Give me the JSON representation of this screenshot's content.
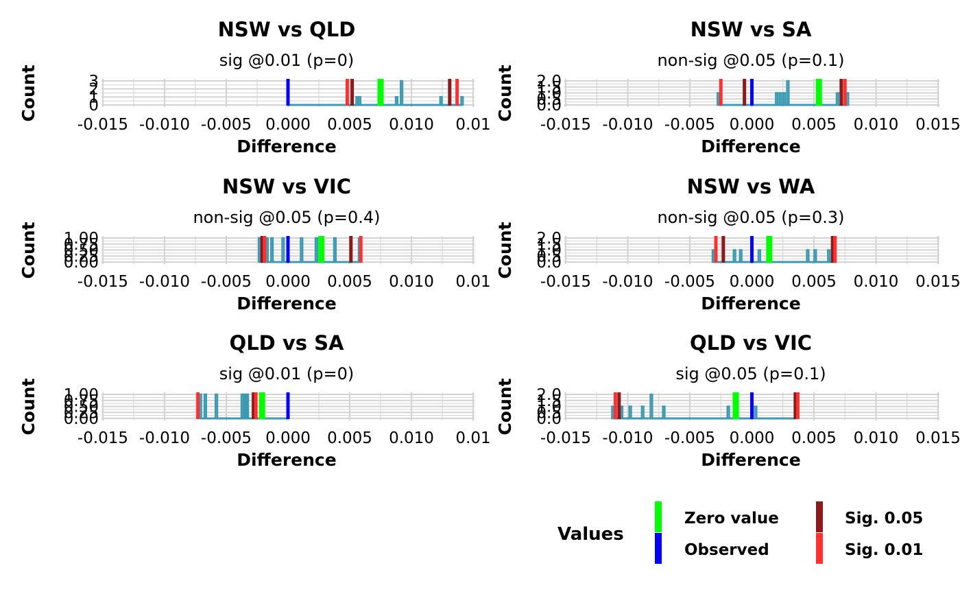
{
  "chart_data": [
    {
      "type": "histogram",
      "title": "NSW vs QLD",
      "subtitle": "sig @0.01 (p=0)",
      "xlabel": "Difference",
      "ylabel": "Count",
      "xlim": [
        -0.015,
        0.015
      ],
      "x_ticks": [
        "-0.015",
        "-0.010",
        "-0.005",
        "0.000",
        "0.005",
        "0.010",
        "0.01"
      ],
      "y_ticks": [
        "0",
        "1",
        "2",
        "3"
      ],
      "ylim": [
        0,
        3
      ],
      "histogram_bins": [
        {
          "x": 0.0056,
          "count": 1
        },
        {
          "x": 0.0058,
          "count": 1
        },
        {
          "x": 0.0088,
          "count": 1
        },
        {
          "x": 0.0092,
          "count": 3
        },
        {
          "x": 0.0124,
          "count": 1
        },
        {
          "x": 0.0141,
          "count": 1
        }
      ],
      "histogram_baseline": [
        0.0,
        0.0141
      ],
      "vlines": [
        {
          "kind": "observed",
          "x": 0.0
        },
        {
          "kind": "sig_01",
          "x": 0.0048
        },
        {
          "kind": "sig_05",
          "x": 0.0052
        },
        {
          "kind": "zero",
          "x": 0.0075
        },
        {
          "kind": "sig_05",
          "x": 0.0131
        },
        {
          "kind": "sig_01",
          "x": 0.0137
        }
      ]
    },
    {
      "type": "histogram",
      "title": "NSW vs SA",
      "subtitle": "non-sig @0.05 (p=0.1)",
      "xlabel": "Difference",
      "ylabel": "Count",
      "xlim": [
        -0.015,
        0.015
      ],
      "x_ticks": [
        "-0.015",
        "-0.010",
        "-0.005",
        "0.000",
        "0.005",
        "0.010",
        "0.015"
      ],
      "y_ticks": [
        "0.0",
        "0.5",
        "1.0",
        "1.5",
        "2.0"
      ],
      "ylim": [
        0,
        2
      ],
      "histogram_bins": [
        {
          "x": -0.0027,
          "count": 1
        },
        {
          "x": 0.002,
          "count": 1
        },
        {
          "x": 0.0023,
          "count": 1
        },
        {
          "x": 0.0026,
          "count": 1
        },
        {
          "x": 0.0029,
          "count": 2
        },
        {
          "x": 0.0069,
          "count": 1
        },
        {
          "x": 0.0077,
          "count": 1
        }
      ],
      "histogram_baseline": [
        -0.0027,
        0.0077
      ],
      "vlines": [
        {
          "kind": "sig_01",
          "x": -0.0025
        },
        {
          "kind": "sig_05",
          "x": -0.0006
        },
        {
          "kind": "observed",
          "x": 0.0
        },
        {
          "kind": "zero",
          "x": 0.0054
        },
        {
          "kind": "sig_05",
          "x": 0.0072
        },
        {
          "kind": "sig_01",
          "x": 0.0075
        }
      ]
    },
    {
      "type": "histogram",
      "title": "NSW vs VIC",
      "subtitle": "non-sig @0.05 (p=0.4)",
      "xlabel": "Difference",
      "ylabel": "Count",
      "xlim": [
        -0.015,
        0.015
      ],
      "x_ticks": [
        "-0.015",
        "-0.010",
        "-0.005",
        "0.000",
        "0.005",
        "0.010",
        "0.01"
      ],
      "y_ticks": [
        "0.00",
        "0.25",
        "0.50",
        "0.75",
        "1.00"
      ],
      "ylim": [
        0,
        1
      ],
      "histogram_bins": [
        {
          "x": -0.0023,
          "count": 1
        },
        {
          "x": -0.0017,
          "count": 1
        },
        {
          "x": -0.0013,
          "count": 1
        },
        {
          "x": -0.0004,
          "count": 1
        },
        {
          "x": 0.0011,
          "count": 1
        },
        {
          "x": 0.0023,
          "count": 1
        },
        {
          "x": 0.0038,
          "count": 1
        },
        {
          "x": 0.0058,
          "count": 1
        }
      ],
      "histogram_baseline": [
        -0.0023,
        0.0058
      ],
      "vlines": [
        {
          "kind": "sig_05",
          "x": -0.0021
        },
        {
          "kind": "sig_01",
          "x": -0.0019
        },
        {
          "kind": "observed",
          "x": 0.0
        },
        {
          "kind": "zero",
          "x": 0.0027
        },
        {
          "kind": "sig_05",
          "x": 0.0051
        },
        {
          "kind": "sig_01",
          "x": 0.0059
        }
      ]
    },
    {
      "type": "histogram",
      "title": "NSW vs WA",
      "subtitle": "non-sig @0.05 (p=0.3)",
      "xlabel": "Difference",
      "ylabel": "Count",
      "xlim": [
        -0.015,
        0.015
      ],
      "x_ticks": [
        "-0.015",
        "-0.010",
        "-0.005",
        "0.000",
        "0.005",
        "0.010",
        "0.015"
      ],
      "y_ticks": [
        "0.0",
        "0.5",
        "1.0",
        "1.5",
        "2.0"
      ],
      "ylim": [
        0,
        2
      ],
      "histogram_bins": [
        {
          "x": -0.0031,
          "count": 1
        },
        {
          "x": -0.0014,
          "count": 1
        },
        {
          "x": -0.0009,
          "count": 1
        },
        {
          "x": 0.0006,
          "count": 1
        },
        {
          "x": 0.0045,
          "count": 1
        },
        {
          "x": 0.0051,
          "count": 1
        },
        {
          "x": 0.0062,
          "count": 1
        }
      ],
      "histogram_baseline": [
        -0.0031,
        0.0068
      ],
      "vlines": [
        {
          "kind": "sig_01",
          "x": -0.0029
        },
        {
          "kind": "sig_05",
          "x": -0.0023
        },
        {
          "kind": "observed",
          "x": 0.0
        },
        {
          "kind": "zero",
          "x": 0.0014
        },
        {
          "kind": "sig_05",
          "x": 0.0065
        },
        {
          "kind": "sig_01",
          "x": 0.0067
        }
      ]
    },
    {
      "type": "histogram",
      "title": "QLD vs SA",
      "subtitle": "sig @0.01 (p=0)",
      "xlabel": "Difference",
      "ylabel": "Count",
      "xlim": [
        -0.015,
        0.015
      ],
      "x_ticks": [
        "-0.015",
        "-0.010",
        "-0.005",
        "0.000",
        "0.005",
        "0.010",
        "0.01"
      ],
      "y_ticks": [
        "0.00",
        "0.25",
        "0.50",
        "0.75",
        "1.00"
      ],
      "ylim": [
        0,
        1
      ],
      "histogram_bins": [
        {
          "x": -0.0071,
          "count": 1
        },
        {
          "x": -0.0067,
          "count": 1
        },
        {
          "x": -0.0058,
          "count": 1
        },
        {
          "x": -0.0037,
          "count": 1
        },
        {
          "x": -0.0035,
          "count": 1
        },
        {
          "x": -0.0034,
          "count": 1
        },
        {
          "x": -0.0033,
          "count": 1
        }
      ],
      "histogram_baseline": [
        -0.0071,
        0.0
      ],
      "vlines": [
        {
          "kind": "sig_01",
          "x": -0.0073
        },
        {
          "kind": "sig_05",
          "x": -0.0028
        },
        {
          "kind": "sig_01",
          "x": -0.0026
        },
        {
          "kind": "zero",
          "x": -0.0021
        },
        {
          "kind": "observed",
          "x": 0.0
        }
      ]
    },
    {
      "type": "histogram",
      "title": "QLD vs VIC",
      "subtitle": "sig @0.05 (p=0.1)",
      "xlabel": "Difference",
      "ylabel": "Count",
      "xlim": [
        -0.015,
        0.015
      ],
      "x_ticks": [
        "-0.015",
        "-0.010",
        "-0.005",
        "0.000",
        "0.005",
        "0.010",
        "0.015"
      ],
      "y_ticks": [
        "0.0",
        "0.5",
        "1.0",
        "1.5",
        "2.0"
      ],
      "ylim": [
        0,
        2
      ],
      "histogram_bins": [
        {
          "x": -0.0112,
          "count": 1
        },
        {
          "x": -0.0105,
          "count": 1
        },
        {
          "x": -0.0098,
          "count": 1
        },
        {
          "x": -0.0088,
          "count": 1
        },
        {
          "x": -0.0081,
          "count": 2
        },
        {
          "x": -0.0071,
          "count": 1
        },
        {
          "x": -0.0019,
          "count": 1
        },
        {
          "x": 0.0003,
          "count": 1
        }
      ],
      "histogram_baseline": [
        -0.0112,
        0.0036
      ],
      "vlines": [
        {
          "kind": "sig_01",
          "x": -0.011
        },
        {
          "kind": "sig_05",
          "x": -0.0107
        },
        {
          "kind": "zero",
          "x": -0.0013
        },
        {
          "kind": "observed",
          "x": 0.0
        },
        {
          "kind": "sig_05",
          "x": 0.0035
        },
        {
          "kind": "sig_01",
          "x": 0.0037
        }
      ]
    }
  ],
  "legend": {
    "title": "Values",
    "items": [
      {
        "kind": "zero",
        "label": "Zero value",
        "color": "#00ff00"
      },
      {
        "kind": "observed",
        "label": "Observed",
        "color": "#0000ff"
      },
      {
        "kind": "sig_05",
        "label": "Sig.  0.05",
        "color": "#8b1a1a"
      },
      {
        "kind": "sig_01",
        "label": "Sig.  0.01",
        "color": "#ff3030"
      }
    ]
  },
  "colors": {
    "histogram": "#3b9ab2",
    "grid": "#d3d3d3"
  }
}
